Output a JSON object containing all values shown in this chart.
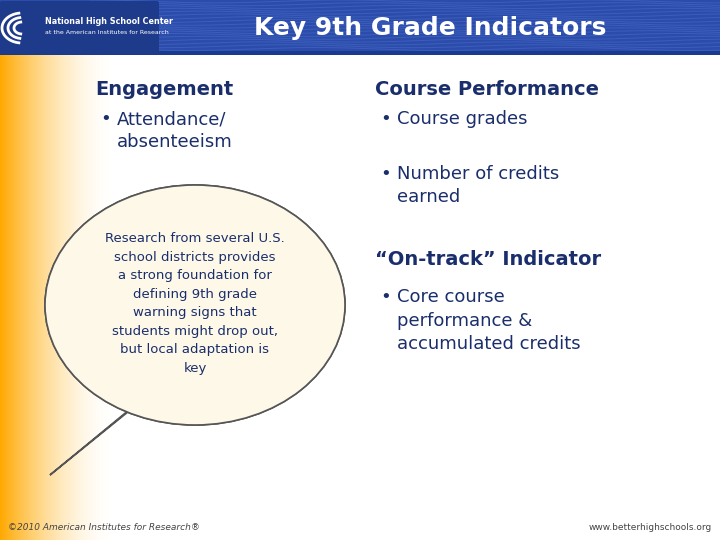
{
  "title": "Key 9th Grade Indicators",
  "title_color": "#FFFFFF",
  "header_bg": "#2B4CAB",
  "body_bg": "#FFFFFF",
  "col1_header": "Engagement",
  "col1_bullets": [
    "Attendance/\nabsenteeism"
  ],
  "col2_header": "Course Performance",
  "col2_bullets": [
    "Course grades",
    "Number of credits\nearned"
  ],
  "col3_header": "“On-track” Indicator",
  "col3_bullets": [
    "Core course\nperformance &\naccumulated credits"
  ],
  "bubble_text_lines": [
    "Research from several U.S.",
    "school districts provides",
    "a strong foundation for",
    "defining 9",
    "th",
    " grade",
    "warning signs that",
    "students might drop out,",
    "but local adaptation is",
    "key"
  ],
  "footer_left": "©2010 American Institutes for Research®",
  "footer_right": "www.betterhighschools.org",
  "dark_blue": "#1A2E6C",
  "logo_line1": "National High School Center",
  "logo_line2": "at the American Institutes for Research"
}
